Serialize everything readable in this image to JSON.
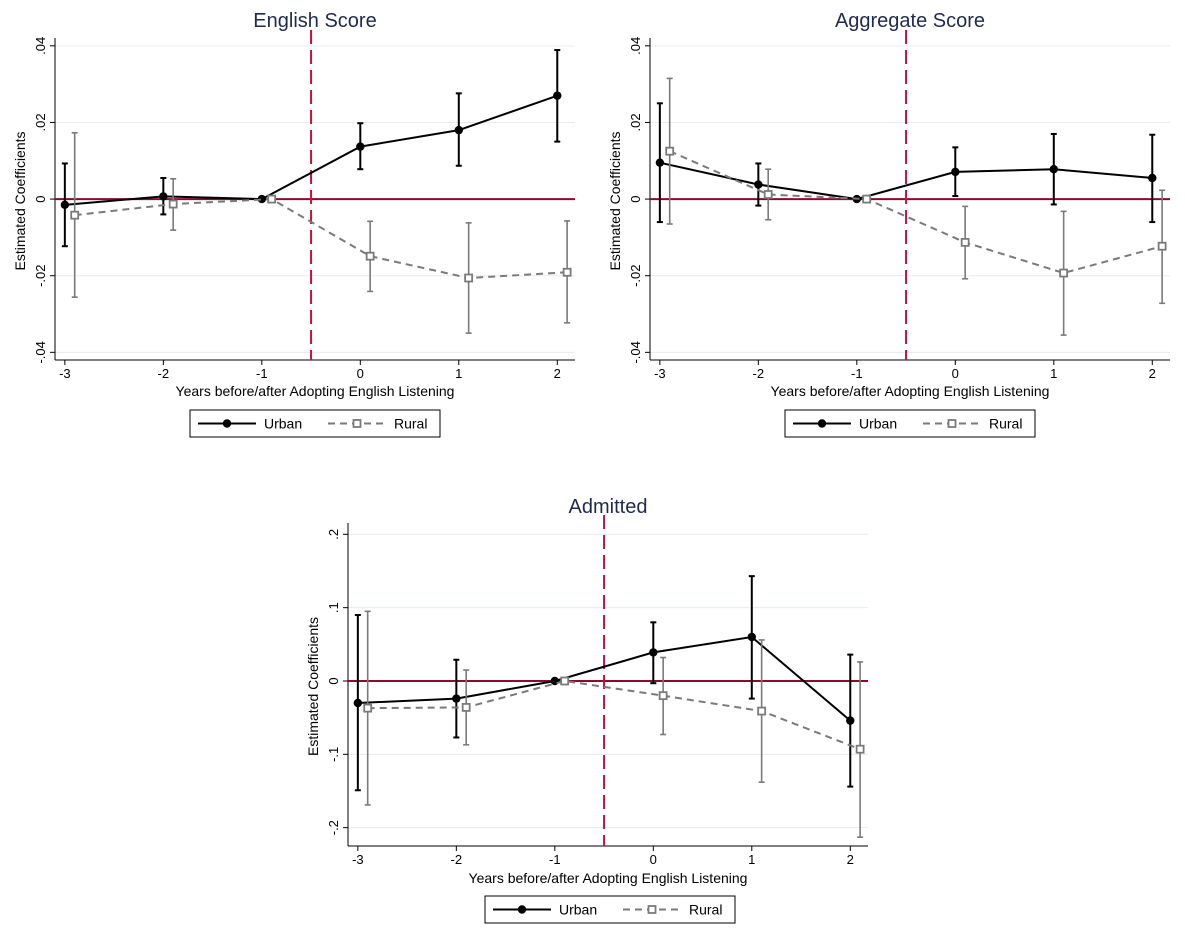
{
  "chart_data": [
    {
      "type": "line",
      "title": "English Score",
      "xlabel": "Years before/after Adopting English Listening",
      "ylabel": "Estimated Coefficients",
      "x_ticks": [
        -3,
        -2,
        -1,
        0,
        1,
        2
      ],
      "x_tick_labels": [
        "-3",
        "-2",
        "-1",
        "0",
        "1",
        "2"
      ],
      "y_ticks": [
        -0.04,
        -0.02,
        0,
        0.02,
        0.04
      ],
      "y_tick_labels": [
        "-.04",
        "-.02",
        "0",
        ".02",
        ".04"
      ],
      "ylim": [
        -0.042,
        0.041
      ],
      "xlim": [
        -3.1,
        2.18
      ],
      "treatment_line_x": -0.5,
      "grid": true,
      "legend": "bottom",
      "series": [
        {
          "name": "Urban",
          "color": "#000000",
          "style": "solid",
          "marker": "filled-circle",
          "x": [
            -3,
            -2,
            -1,
            0,
            1,
            2
          ],
          "y": [
            -0.0015,
            0.0007,
            0.0,
            0.0137,
            0.018,
            0.027
          ],
          "ci_low": [
            -0.0123,
            -0.004,
            0.0,
            0.0078,
            0.0087,
            0.015
          ],
          "ci_high": [
            0.0093,
            0.0055,
            0.0,
            0.0198,
            0.0276,
            0.0389
          ]
        },
        {
          "name": "Rural",
          "color": "#7a7a7a",
          "style": "dashed",
          "marker": "hollow-square",
          "x": [
            -3,
            -2,
            -1,
            0,
            1,
            2
          ],
          "y": [
            -0.0042,
            -0.0013,
            0.0,
            -0.0149,
            -0.0206,
            -0.0191
          ],
          "ci_low": [
            -0.0256,
            -0.0081,
            0.0,
            -0.0241,
            -0.035,
            -0.0323
          ],
          "ci_high": [
            0.0173,
            0.0053,
            0.0,
            -0.0058,
            -0.0062,
            -0.0057
          ]
        }
      ]
    },
    {
      "type": "line",
      "title": "Aggregate Score",
      "xlabel": "Years before/after Adopting English Listening",
      "ylabel": "Estimated Coefficients",
      "x_ticks": [
        -3,
        -2,
        -1,
        0,
        1,
        2
      ],
      "x_tick_labels": [
        "-3",
        "-2",
        "-1",
        "0",
        "1",
        "2"
      ],
      "y_ticks": [
        -0.04,
        -0.02,
        0,
        0.02,
        0.04
      ],
      "y_tick_labels": [
        "-.04",
        "-.02",
        "0",
        ".02",
        ".04"
      ],
      "ylim": [
        -0.042,
        0.041
      ],
      "xlim": [
        -3.1,
        2.18
      ],
      "treatment_line_x": -0.5,
      "grid": true,
      "legend": "bottom",
      "series": [
        {
          "name": "Urban",
          "color": "#000000",
          "style": "solid",
          "marker": "filled-circle",
          "x": [
            -3,
            -2,
            -1,
            0,
            1,
            2
          ],
          "y": [
            0.0095,
            0.0038,
            0.0,
            0.0071,
            0.0078,
            0.0055
          ],
          "ci_low": [
            -0.006,
            -0.0017,
            0.0,
            0.0008,
            -0.0014,
            -0.006
          ],
          "ci_high": [
            0.025,
            0.0093,
            0.0,
            0.0135,
            0.017,
            0.0168
          ]
        },
        {
          "name": "Rural",
          "color": "#7a7a7a",
          "style": "dashed",
          "marker": "hollow-square",
          "x": [
            -3,
            -2,
            -1,
            0,
            1,
            2
          ],
          "y": [
            0.0125,
            0.0012,
            0.0,
            -0.0113,
            -0.0193,
            -0.0123
          ],
          "ci_low": [
            -0.0065,
            -0.0054,
            0.0,
            -0.0208,
            -0.0355,
            -0.0272
          ],
          "ci_high": [
            0.0315,
            0.0078,
            0.0,
            -0.0019,
            -0.0032,
            0.0023
          ]
        }
      ]
    },
    {
      "type": "line",
      "title": "Admitted",
      "xlabel": "Years before/after Adopting English Listening",
      "ylabel": "Estimated Coefficients",
      "x_ticks": [
        -3,
        -2,
        -1,
        0,
        1,
        2
      ],
      "x_tick_labels": [
        "-3",
        "-2",
        "-1",
        "0",
        "1",
        "2"
      ],
      "y_ticks": [
        -0.2,
        -0.1,
        0,
        0.1,
        0.2
      ],
      "y_tick_labels": [
        "-.2",
        "-.1",
        "0",
        ".1",
        ".2"
      ],
      "ylim": [
        -0.225,
        0.21
      ],
      "xlim": [
        -3.1,
        2.18
      ],
      "treatment_line_x": -0.5,
      "grid": true,
      "legend": "bottom",
      "series": [
        {
          "name": "Urban",
          "color": "#000000",
          "style": "solid",
          "marker": "filled-circle",
          "x": [
            -3,
            -2,
            -1,
            0,
            1,
            2
          ],
          "y": [
            -0.03,
            -0.024,
            0.0,
            0.039,
            0.06,
            -0.054
          ],
          "ci_low": [
            -0.149,
            -0.077,
            0.0,
            -0.003,
            -0.024,
            -0.144
          ],
          "ci_high": [
            0.09,
            0.029,
            0.0,
            0.08,
            0.143,
            0.036
          ]
        },
        {
          "name": "Rural",
          "color": "#7a7a7a",
          "style": "dashed",
          "marker": "hollow-square",
          "x": [
            -3,
            -2,
            -1,
            0,
            1,
            2
          ],
          "y": [
            -0.037,
            -0.036,
            0.0,
            -0.02,
            -0.041,
            -0.093
          ],
          "ci_low": [
            -0.169,
            -0.087,
            0.0,
            -0.073,
            -0.138,
            -0.213
          ],
          "ci_high": [
            0.095,
            0.015,
            0.0,
            0.032,
            0.056,
            0.026
          ]
        }
      ]
    }
  ],
  "colors": {
    "title": "#1e2b4d",
    "zero_line": "#8b0a2e",
    "treatment_line": "#c8103c",
    "grid": "#e6ebef",
    "urban": "#000000",
    "rural": "#7a7a7a"
  }
}
